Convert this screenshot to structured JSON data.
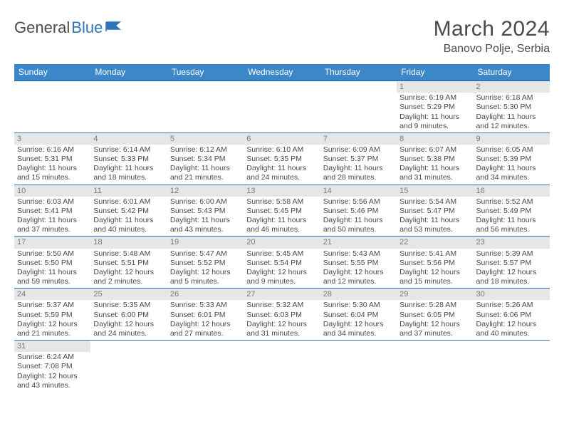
{
  "brand": {
    "part1": "General",
    "part2": "Blue"
  },
  "title": "March 2024",
  "location": "Banovo Polje, Serbia",
  "colors": {
    "header_bg": "#3c87c7",
    "header_border": "#2f75b5",
    "row_border": "#2f75b5",
    "daynum_bg": "#e6e6e6",
    "text": "#4a4a4a",
    "brand_blue": "#2f75b5"
  },
  "weekdays": [
    "Sunday",
    "Monday",
    "Tuesday",
    "Wednesday",
    "Thursday",
    "Friday",
    "Saturday"
  ],
  "weeks": [
    [
      {
        "day": "",
        "sunrise": "",
        "sunset": "",
        "daylight": ""
      },
      {
        "day": "",
        "sunrise": "",
        "sunset": "",
        "daylight": ""
      },
      {
        "day": "",
        "sunrise": "",
        "sunset": "",
        "daylight": ""
      },
      {
        "day": "",
        "sunrise": "",
        "sunset": "",
        "daylight": ""
      },
      {
        "day": "",
        "sunrise": "",
        "sunset": "",
        "daylight": ""
      },
      {
        "day": "1",
        "sunrise": "Sunrise: 6:19 AM",
        "sunset": "Sunset: 5:29 PM",
        "daylight": "Daylight: 11 hours and 9 minutes."
      },
      {
        "day": "2",
        "sunrise": "Sunrise: 6:18 AM",
        "sunset": "Sunset: 5:30 PM",
        "daylight": "Daylight: 11 hours and 12 minutes."
      }
    ],
    [
      {
        "day": "3",
        "sunrise": "Sunrise: 6:16 AM",
        "sunset": "Sunset: 5:31 PM",
        "daylight": "Daylight: 11 hours and 15 minutes."
      },
      {
        "day": "4",
        "sunrise": "Sunrise: 6:14 AM",
        "sunset": "Sunset: 5:33 PM",
        "daylight": "Daylight: 11 hours and 18 minutes."
      },
      {
        "day": "5",
        "sunrise": "Sunrise: 6:12 AM",
        "sunset": "Sunset: 5:34 PM",
        "daylight": "Daylight: 11 hours and 21 minutes."
      },
      {
        "day": "6",
        "sunrise": "Sunrise: 6:10 AM",
        "sunset": "Sunset: 5:35 PM",
        "daylight": "Daylight: 11 hours and 24 minutes."
      },
      {
        "day": "7",
        "sunrise": "Sunrise: 6:09 AM",
        "sunset": "Sunset: 5:37 PM",
        "daylight": "Daylight: 11 hours and 28 minutes."
      },
      {
        "day": "8",
        "sunrise": "Sunrise: 6:07 AM",
        "sunset": "Sunset: 5:38 PM",
        "daylight": "Daylight: 11 hours and 31 minutes."
      },
      {
        "day": "9",
        "sunrise": "Sunrise: 6:05 AM",
        "sunset": "Sunset: 5:39 PM",
        "daylight": "Daylight: 11 hours and 34 minutes."
      }
    ],
    [
      {
        "day": "10",
        "sunrise": "Sunrise: 6:03 AM",
        "sunset": "Sunset: 5:41 PM",
        "daylight": "Daylight: 11 hours and 37 minutes."
      },
      {
        "day": "11",
        "sunrise": "Sunrise: 6:01 AM",
        "sunset": "Sunset: 5:42 PM",
        "daylight": "Daylight: 11 hours and 40 minutes."
      },
      {
        "day": "12",
        "sunrise": "Sunrise: 6:00 AM",
        "sunset": "Sunset: 5:43 PM",
        "daylight": "Daylight: 11 hours and 43 minutes."
      },
      {
        "day": "13",
        "sunrise": "Sunrise: 5:58 AM",
        "sunset": "Sunset: 5:45 PM",
        "daylight": "Daylight: 11 hours and 46 minutes."
      },
      {
        "day": "14",
        "sunrise": "Sunrise: 5:56 AM",
        "sunset": "Sunset: 5:46 PM",
        "daylight": "Daylight: 11 hours and 50 minutes."
      },
      {
        "day": "15",
        "sunrise": "Sunrise: 5:54 AM",
        "sunset": "Sunset: 5:47 PM",
        "daylight": "Daylight: 11 hours and 53 minutes."
      },
      {
        "day": "16",
        "sunrise": "Sunrise: 5:52 AM",
        "sunset": "Sunset: 5:49 PM",
        "daylight": "Daylight: 11 hours and 56 minutes."
      }
    ],
    [
      {
        "day": "17",
        "sunrise": "Sunrise: 5:50 AM",
        "sunset": "Sunset: 5:50 PM",
        "daylight": "Daylight: 11 hours and 59 minutes."
      },
      {
        "day": "18",
        "sunrise": "Sunrise: 5:48 AM",
        "sunset": "Sunset: 5:51 PM",
        "daylight": "Daylight: 12 hours and 2 minutes."
      },
      {
        "day": "19",
        "sunrise": "Sunrise: 5:47 AM",
        "sunset": "Sunset: 5:52 PM",
        "daylight": "Daylight: 12 hours and 5 minutes."
      },
      {
        "day": "20",
        "sunrise": "Sunrise: 5:45 AM",
        "sunset": "Sunset: 5:54 PM",
        "daylight": "Daylight: 12 hours and 9 minutes."
      },
      {
        "day": "21",
        "sunrise": "Sunrise: 5:43 AM",
        "sunset": "Sunset: 5:55 PM",
        "daylight": "Daylight: 12 hours and 12 minutes."
      },
      {
        "day": "22",
        "sunrise": "Sunrise: 5:41 AM",
        "sunset": "Sunset: 5:56 PM",
        "daylight": "Daylight: 12 hours and 15 minutes."
      },
      {
        "day": "23",
        "sunrise": "Sunrise: 5:39 AM",
        "sunset": "Sunset: 5:57 PM",
        "daylight": "Daylight: 12 hours and 18 minutes."
      }
    ],
    [
      {
        "day": "24",
        "sunrise": "Sunrise: 5:37 AM",
        "sunset": "Sunset: 5:59 PM",
        "daylight": "Daylight: 12 hours and 21 minutes."
      },
      {
        "day": "25",
        "sunrise": "Sunrise: 5:35 AM",
        "sunset": "Sunset: 6:00 PM",
        "daylight": "Daylight: 12 hours and 24 minutes."
      },
      {
        "day": "26",
        "sunrise": "Sunrise: 5:33 AM",
        "sunset": "Sunset: 6:01 PM",
        "daylight": "Daylight: 12 hours and 27 minutes."
      },
      {
        "day": "27",
        "sunrise": "Sunrise: 5:32 AM",
        "sunset": "Sunset: 6:03 PM",
        "daylight": "Daylight: 12 hours and 31 minutes."
      },
      {
        "day": "28",
        "sunrise": "Sunrise: 5:30 AM",
        "sunset": "Sunset: 6:04 PM",
        "daylight": "Daylight: 12 hours and 34 minutes."
      },
      {
        "day": "29",
        "sunrise": "Sunrise: 5:28 AM",
        "sunset": "Sunset: 6:05 PM",
        "daylight": "Daylight: 12 hours and 37 minutes."
      },
      {
        "day": "30",
        "sunrise": "Sunrise: 5:26 AM",
        "sunset": "Sunset: 6:06 PM",
        "daylight": "Daylight: 12 hours and 40 minutes."
      }
    ],
    [
      {
        "day": "31",
        "sunrise": "Sunrise: 6:24 AM",
        "sunset": "Sunset: 7:08 PM",
        "daylight": "Daylight: 12 hours and 43 minutes."
      },
      {
        "day": "",
        "sunrise": "",
        "sunset": "",
        "daylight": ""
      },
      {
        "day": "",
        "sunrise": "",
        "sunset": "",
        "daylight": ""
      },
      {
        "day": "",
        "sunrise": "",
        "sunset": "",
        "daylight": ""
      },
      {
        "day": "",
        "sunrise": "",
        "sunset": "",
        "daylight": ""
      },
      {
        "day": "",
        "sunrise": "",
        "sunset": "",
        "daylight": ""
      },
      {
        "day": "",
        "sunrise": "",
        "sunset": "",
        "daylight": ""
      }
    ]
  ]
}
